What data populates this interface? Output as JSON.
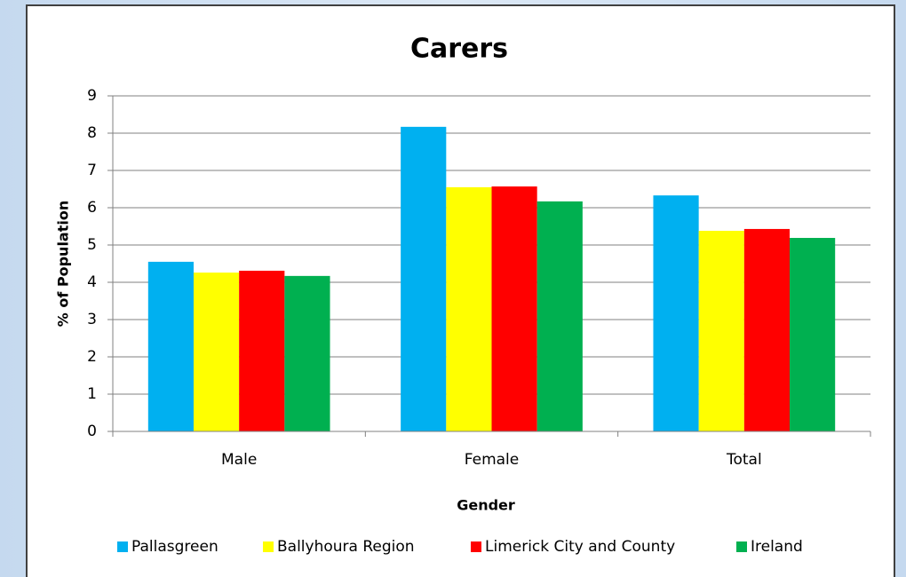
{
  "chart_data": {
    "type": "bar",
    "title": "Carers",
    "x_label": "Gender",
    "y_label": "% of Population",
    "categories": [
      "Male",
      "Female",
      "Total"
    ],
    "series": [
      {
        "name": "Pallasgreen",
        "color": "#00b0f0",
        "values": [
          4.55,
          8.17,
          6.33
        ]
      },
      {
        "name": "Ballyhoura Region",
        "color": "#ffff00",
        "values": [
          4.26,
          6.55,
          5.38
        ]
      },
      {
        "name": "Limerick City and County",
        "color": "#ff0000",
        "values": [
          4.31,
          6.57,
          5.43
        ]
      },
      {
        "name": "Ireland",
        "color": "#00b050",
        "values": [
          4.17,
          6.17,
          5.19
        ]
      }
    ],
    "ylim": [
      0,
      9
    ],
    "yticks": [
      0,
      1,
      2,
      3,
      4,
      5,
      6,
      7,
      8,
      9
    ],
    "grid": true,
    "legend": "bottom"
  }
}
